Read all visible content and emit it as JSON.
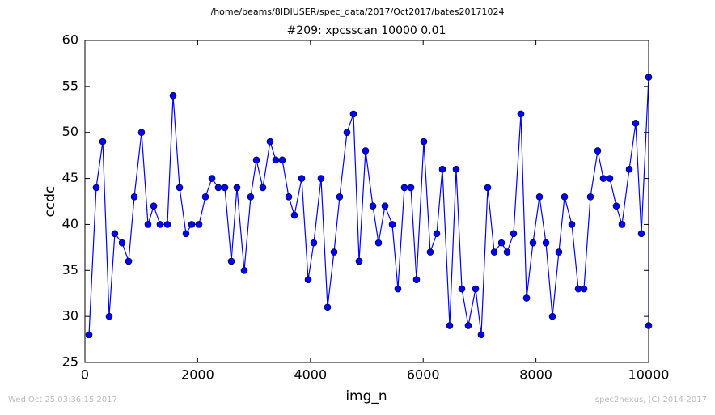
{
  "chart_data": {
    "type": "line",
    "suptitle": "/home/beams/8IDIUSER/spec_data/2017/Oct2017/bates20171024",
    "title": "#209: xpcsscan 10000 0.01",
    "xlabel": "img_n",
    "ylabel": "ccdc",
    "x": [
      72,
      200,
      316,
      430,
      530,
      660,
      775,
      875,
      1004,
      1119,
      1220,
      1334,
      1463,
      1564,
      1679,
      1793,
      1894,
      2023,
      2138,
      2253,
      2367,
      2482,
      2597,
      2697,
      2826,
      2941,
      3042,
      3156,
      3285,
      3386,
      3501,
      3616,
      3716,
      3845,
      3960,
      4060,
      4189,
      4304,
      4419,
      4519,
      4648,
      4763,
      4864,
      4978,
      5108,
      5208,
      5323,
      5452,
      5552,
      5667,
      5782,
      5882,
      6011,
      6126,
      6241,
      6341,
      6470,
      6585,
      6686,
      6800,
      6930,
      7030,
      7145,
      7260,
      7389,
      7489,
      7604,
      7733,
      7834,
      7948,
      8063,
      8178,
      8293,
      8407,
      8508,
      8637,
      8752,
      8852,
      8967,
      9096,
      9197,
      9311,
      9426,
      9527,
      9656,
      9770,
      9871,
      10000,
      10000
    ],
    "series": [
      {
        "name": "ccdc",
        "color": "#0000ff",
        "values": [
          28,
          44,
          49,
          30,
          39,
          38,
          36,
          43,
          50,
          40,
          42,
          40,
          40,
          54,
          44,
          39,
          40,
          40,
          43,
          45,
          44,
          44,
          36,
          44,
          35,
          43,
          47,
          44,
          49,
          47,
          47,
          43,
          41,
          45,
          34,
          38,
          45,
          31,
          37,
          43,
          50,
          52,
          36,
          48,
          42,
          38,
          42,
          40,
          33,
          44,
          44,
          34,
          49,
          37,
          39,
          46,
          29,
          46,
          33,
          29,
          33,
          28,
          44,
          37,
          38,
          37,
          39,
          52,
          32,
          38,
          43,
          38,
          30,
          37,
          43,
          40,
          33,
          33,
          43,
          48,
          45,
          45,
          42,
          40,
          46,
          51,
          39,
          56,
          29
        ]
      }
    ],
    "xlim": [
      0,
      10000
    ],
    "xticks": [
      0,
      2000,
      4000,
      6000,
      8000,
      10000
    ],
    "ylim": [
      25,
      60
    ],
    "yticks": [
      25,
      30,
      35,
      40,
      45,
      50,
      55,
      60
    ],
    "footnotes": [
      "Wed Oct 25 03:36:15 2017",
      "spec2nexus, (C) 2014-2017"
    ]
  }
}
